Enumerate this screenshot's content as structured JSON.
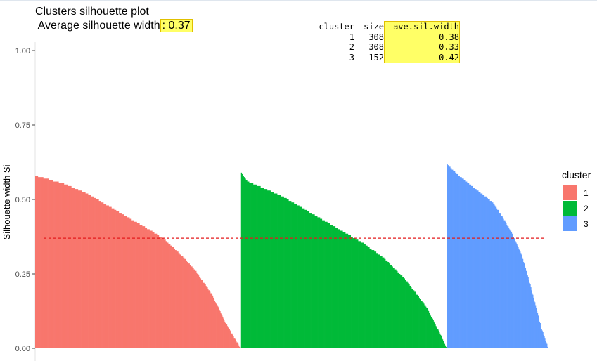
{
  "title": "Clusters silhouette plot",
  "subtitle_prefix": " Average silhouette width",
  "subtitle_value": ": 0.37",
  "stats_table": {
    "headers": [
      "cluster",
      "size",
      "ave.sil.width"
    ],
    "rows": [
      [
        "1",
        "308",
        "0.38"
      ],
      [
        "2",
        "308",
        "0.33"
      ],
      [
        "3",
        "152",
        "0.42"
      ]
    ]
  },
  "colors": {
    "1": "#f8766d",
    "2": "#00ba38",
    "3": "#619cff",
    "avg_line": "#e41a1c",
    "highlight": "#ffff66"
  },
  "chart_data": {
    "type": "bar",
    "ylabel": "Silhouette width Si",
    "ylim": [
      0,
      1.02
    ],
    "yticks": [
      "0.00",
      "0.25",
      "0.50",
      "0.75",
      "1.00"
    ],
    "average_line": 0.37,
    "legend": {
      "title": "cluster",
      "position": "right",
      "entries": [
        "1",
        "2",
        "3"
      ]
    },
    "series": [
      {
        "name": "1",
        "size": 308,
        "profile": [
          [
            0,
            0.58
          ],
          [
            0.05,
            0.57
          ],
          [
            0.15,
            0.55
          ],
          [
            0.25,
            0.52
          ],
          [
            0.35,
            0.48
          ],
          [
            0.45,
            0.44
          ],
          [
            0.55,
            0.4
          ],
          [
            0.62,
            0.37
          ],
          [
            0.7,
            0.32
          ],
          [
            0.78,
            0.26
          ],
          [
            0.86,
            0.18
          ],
          [
            0.93,
            0.08
          ],
          [
            1.0,
            0.0
          ]
        ]
      },
      {
        "name": "2",
        "size": 308,
        "profile": [
          [
            0,
            0.59
          ],
          [
            0.03,
            0.56
          ],
          [
            0.1,
            0.54
          ],
          [
            0.2,
            0.51
          ],
          [
            0.3,
            0.47
          ],
          [
            0.4,
            0.43
          ],
          [
            0.5,
            0.39
          ],
          [
            0.6,
            0.35
          ],
          [
            0.7,
            0.3
          ],
          [
            0.8,
            0.23
          ],
          [
            0.9,
            0.14
          ],
          [
            0.96,
            0.06
          ],
          [
            1.0,
            0.0
          ]
        ]
      },
      {
        "name": "3",
        "size": 152,
        "profile": [
          [
            0,
            0.62
          ],
          [
            0.05,
            0.6
          ],
          [
            0.15,
            0.57
          ],
          [
            0.3,
            0.53
          ],
          [
            0.45,
            0.49
          ],
          [
            0.55,
            0.44
          ],
          [
            0.65,
            0.38
          ],
          [
            0.73,
            0.32
          ],
          [
            0.8,
            0.24
          ],
          [
            0.87,
            0.15
          ],
          [
            0.93,
            0.07
          ],
          [
            1.0,
            0.0
          ]
        ]
      }
    ]
  }
}
